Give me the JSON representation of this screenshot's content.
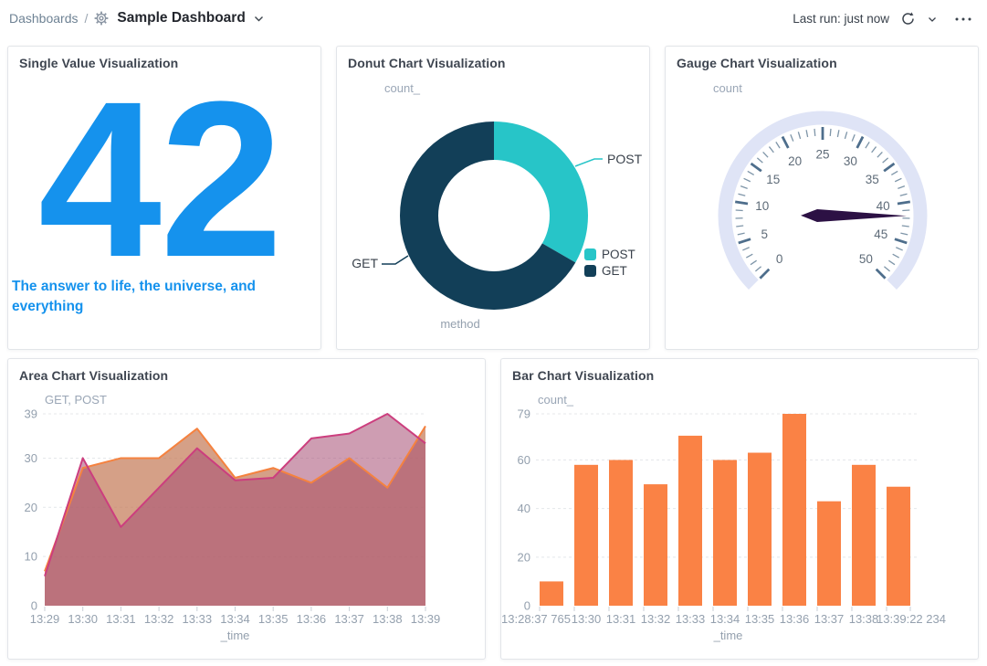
{
  "header": {
    "breadcrumb": "Dashboards",
    "separator": "/",
    "title": "Sample Dashboard",
    "last_run": "Last run: just now"
  },
  "panels": {
    "single_value": {
      "title": "Single Value Visualization",
      "value": "42",
      "caption": "The answer to life, the universe, and everything",
      "color": "#1592ED"
    },
    "donut": {
      "title": "Donut Chart Visualization"
    },
    "gauge": {
      "title": "Gauge Chart Visualization"
    },
    "area": {
      "title": "Area Chart Visualization"
    },
    "bar": {
      "title": "Bar Chart Visualization"
    }
  },
  "chart_data": [
    {
      "id": "donut",
      "type": "pie",
      "subtype": "donut",
      "field_label": "count_",
      "category_label": "method",
      "legend_position": "right",
      "slices": [
        {
          "label": "POST",
          "fraction": 0.333,
          "color": "#27C5C8"
        },
        {
          "label": "GET",
          "fraction": 0.667,
          "color": "#123F58"
        }
      ]
    },
    {
      "id": "gauge",
      "type": "gauge",
      "field_label": "count",
      "min": 0,
      "max": 50,
      "value": 41.7,
      "major_tick_step": 5,
      "minor_tick_step": 1,
      "tick_labels": [
        0,
        5,
        10,
        15,
        20,
        25,
        30,
        35,
        40,
        45,
        50
      ],
      "band_color": "#DFE4F6",
      "major_tick_color": "#4E6E8C",
      "minor_tick_color": "#7E95A8",
      "label_color": "#5E6B78",
      "needle_color": "#2C1144"
    },
    {
      "id": "area",
      "type": "area",
      "series_label": "GET, POST",
      "xlabel": "_time",
      "ylim": [
        0,
        39
      ],
      "yticks": [
        0,
        10,
        20,
        30,
        39
      ],
      "grid": "dashed-horizontal",
      "x": [
        "13:29",
        "13:30",
        "13:31",
        "13:32",
        "13:33",
        "13:34",
        "13:35",
        "13:36",
        "13:37",
        "13:38",
        "13:39"
      ],
      "series": [
        {
          "name": "GET",
          "stroke": "#F5823F",
          "fill": "rgba(197,124,89,0.72)",
          "values": [
            7,
            28,
            30,
            30,
            36,
            26,
            28,
            25,
            30,
            24,
            36.5
          ]
        },
        {
          "name": "POST",
          "stroke": "#CC3E7E",
          "fill": "rgba(166,77,115,0.55)",
          "values": [
            6,
            30,
            16,
            24,
            32,
            25.5,
            26,
            34,
            35,
            39,
            33
          ]
        }
      ]
    },
    {
      "id": "bar",
      "type": "bar",
      "field_label": "count_",
      "xlabel": "_time",
      "ylim": [
        0,
        79
      ],
      "yticks": [
        0,
        20,
        40,
        60,
        79
      ],
      "grid": "dashed-horizontal",
      "color": "#FA8245",
      "categories": [
        "13:28:37 765",
        "13:30",
        "13:31",
        "13:32",
        "13:33",
        "13:34",
        "13:35",
        "13:36",
        "13:37",
        "13:38",
        "13:39:22 234"
      ],
      "values": [
        10,
        58,
        60,
        50,
        70,
        60,
        63,
        79,
        43,
        58,
        49
      ]
    }
  ]
}
